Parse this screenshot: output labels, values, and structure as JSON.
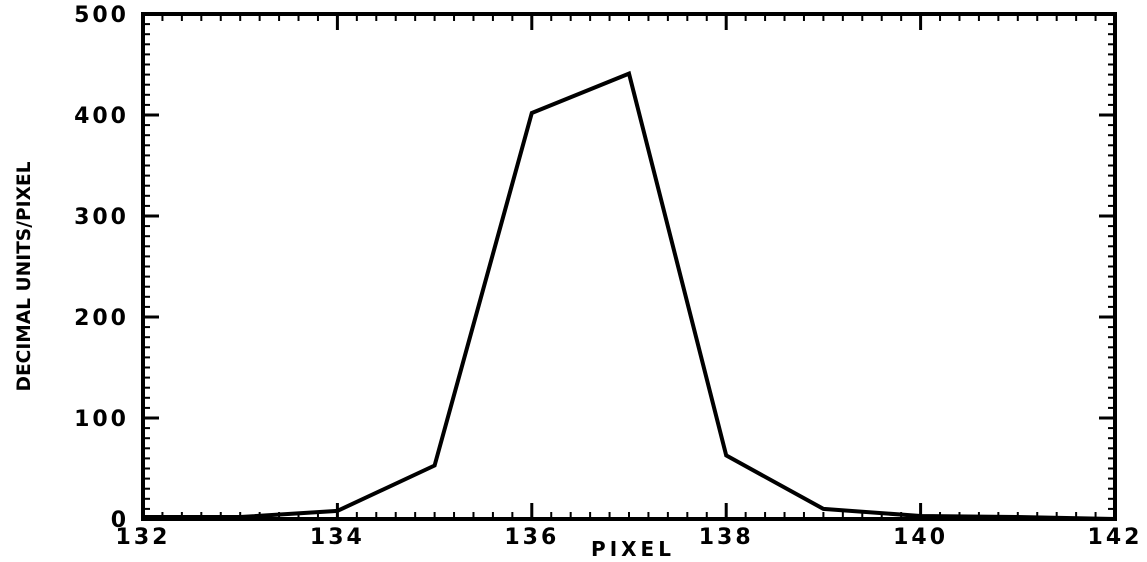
{
  "chart_data": {
    "type": "line",
    "title": "",
    "xlabel": "PIXEL",
    "ylabel": "DECIMAL UNITS/PIXEL",
    "xlim": [
      132,
      142
    ],
    "ylim": [
      0,
      500
    ],
    "x_ticks": [
      132,
      134,
      136,
      138,
      140,
      142
    ],
    "y_ticks": [
      0,
      100,
      200,
      300,
      400,
      500
    ],
    "x_tick_labels": [
      "132",
      "134",
      "136",
      "138",
      "140",
      "142"
    ],
    "y_tick_labels": [
      "0",
      "100",
      "200",
      "300",
      "400",
      "500"
    ],
    "grid": false,
    "series": [
      {
        "x": [
          132,
          133,
          134,
          135,
          136,
          137,
          138,
          139,
          140,
          141,
          142
        ],
        "y": [
          2,
          2,
          8,
          53,
          402,
          441,
          63,
          10,
          3,
          2,
          0
        ]
      }
    ],
    "colors": {
      "line": "#000000",
      "axes": "#000000"
    }
  }
}
